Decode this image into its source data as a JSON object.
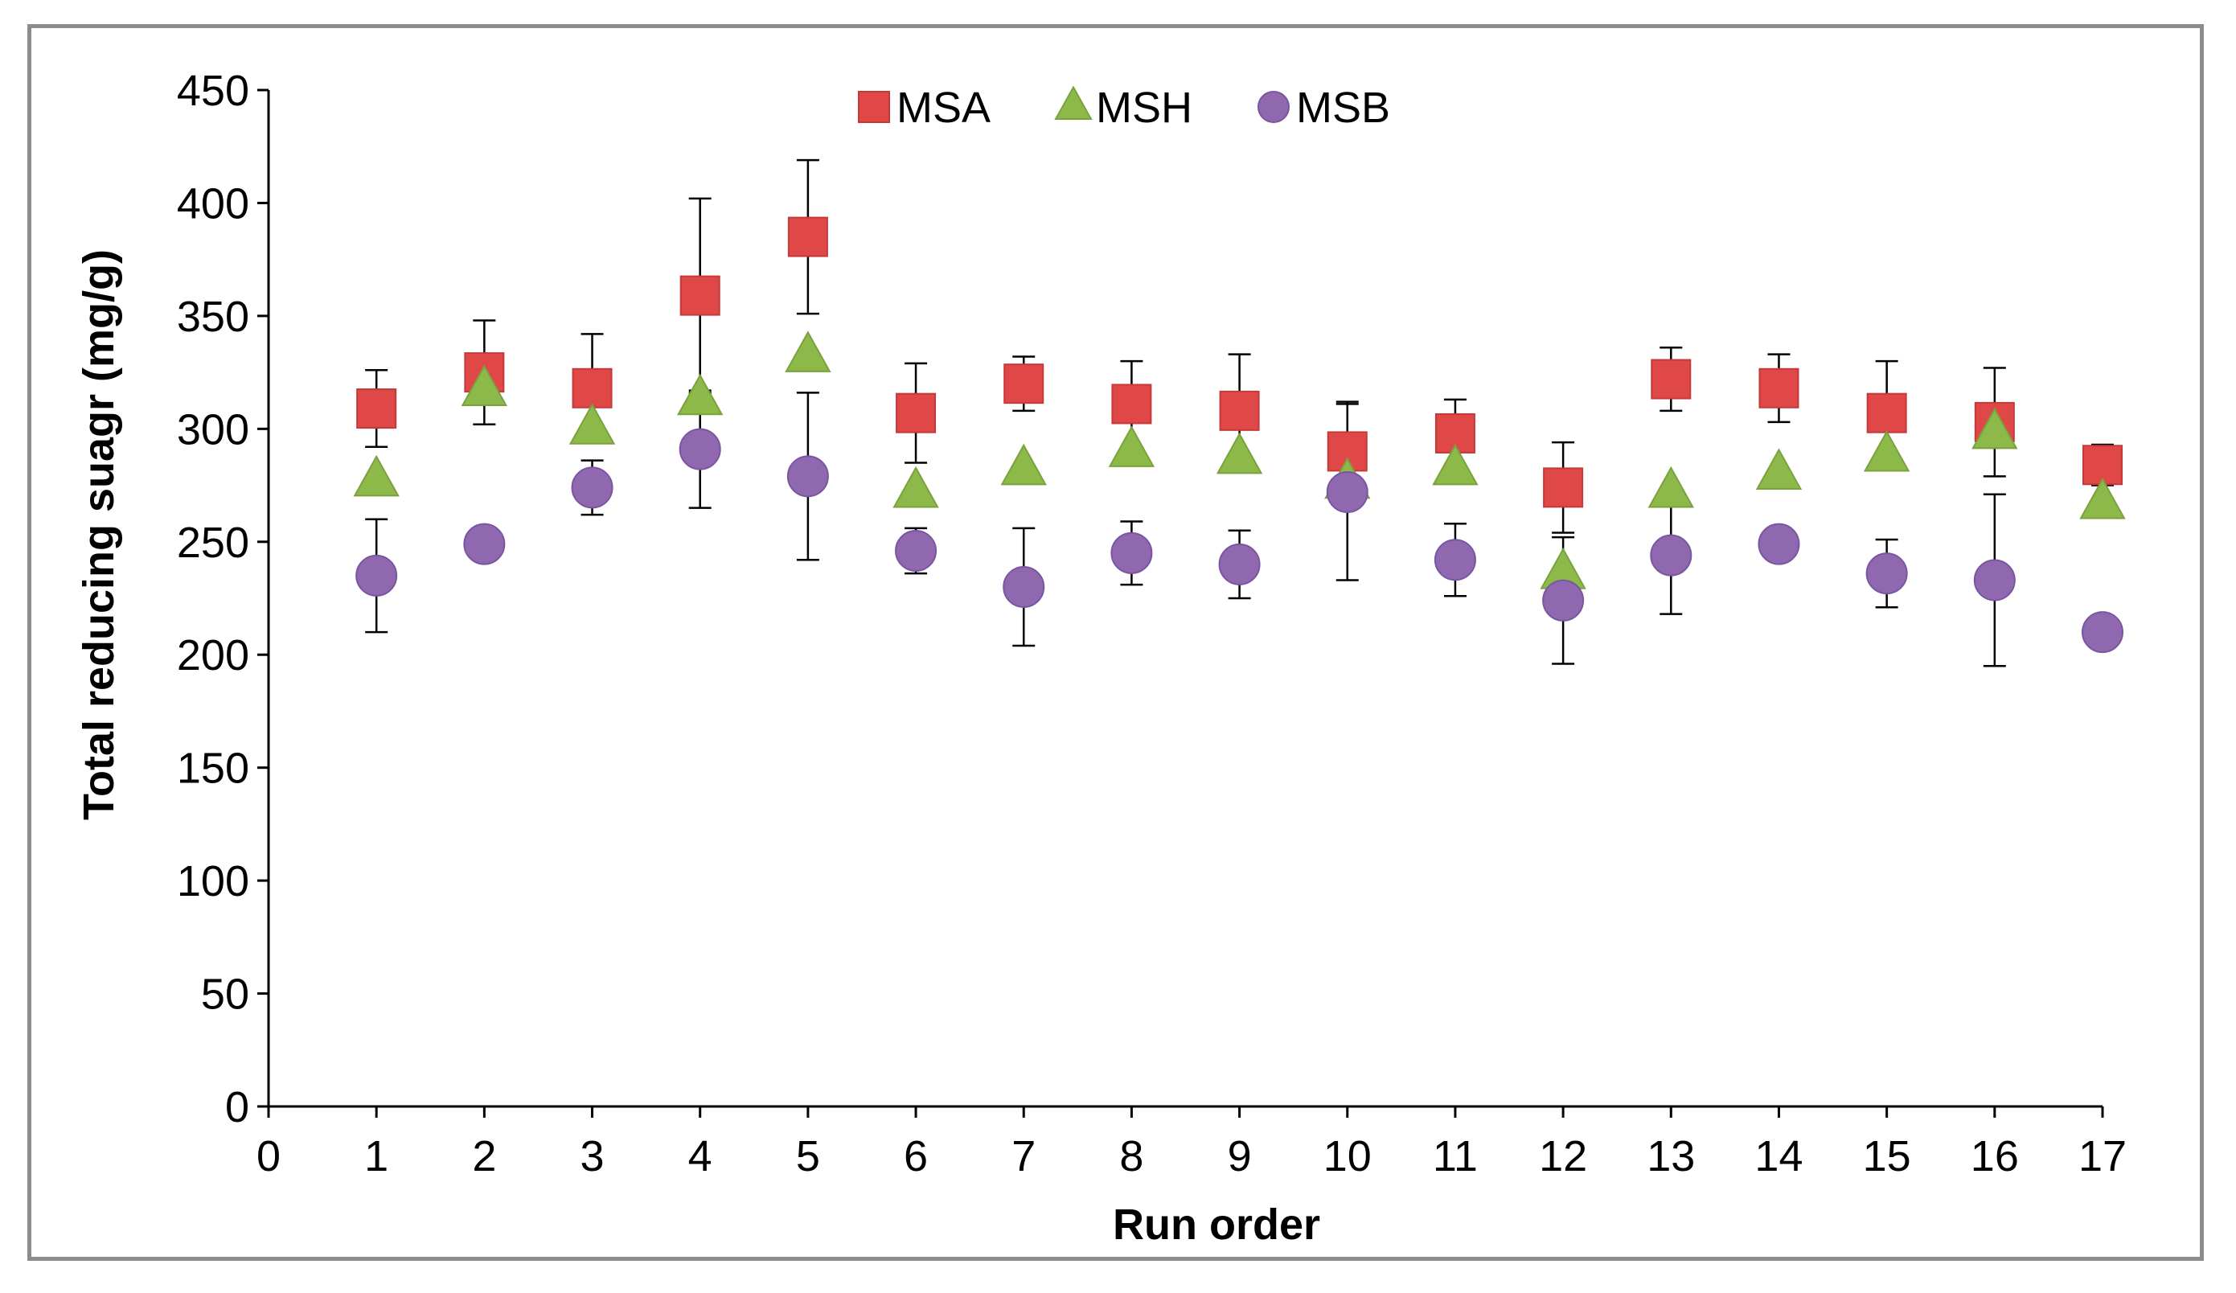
{
  "chart_data": {
    "type": "scatter",
    "title": "",
    "xlabel": "Run order",
    "ylabel": "Total reducing suagr (mg/g)",
    "xlim": [
      0,
      17
    ],
    "ylim": [
      0,
      450
    ],
    "xticks": [
      0,
      1,
      2,
      3,
      4,
      5,
      6,
      7,
      8,
      9,
      10,
      11,
      12,
      13,
      14,
      15,
      16,
      17
    ],
    "yticks": [
      0,
      50,
      100,
      150,
      200,
      250,
      300,
      350,
      400,
      450
    ],
    "grid": false,
    "legend_position": "top-center",
    "x": [
      1,
      2,
      3,
      4,
      5,
      6,
      7,
      8,
      9,
      10,
      11,
      12,
      13,
      14,
      15,
      16,
      17
    ],
    "series": [
      {
        "name": "MSA",
        "marker": "square",
        "color": "#e04848",
        "values": [
          309,
          325,
          318,
          359,
          385,
          307,
          320,
          311,
          308,
          290,
          298,
          274,
          322,
          318,
          307,
          303,
          284
        ],
        "errors": [
          17,
          23,
          24,
          43,
          34,
          22,
          12,
          19,
          25,
          22,
          15,
          20,
          14,
          15,
          23,
          24,
          9
        ]
      },
      {
        "name": "MSH",
        "marker": "triangle",
        "color": "#8db84a",
        "values": [
          277,
          317,
          300,
          313,
          332,
          272,
          282,
          290,
          287,
          276,
          282,
          236,
          272,
          280,
          288,
          298,
          267
        ]
      },
      {
        "name": "MSB",
        "marker": "circle",
        "color": "#9068b0",
        "values": [
          235,
          249,
          274,
          291,
          279,
          246,
          230,
          245,
          240,
          272,
          242,
          224,
          244,
          249,
          236,
          233,
          210
        ],
        "errors": [
          25,
          0,
          12,
          26,
          37,
          10,
          26,
          14,
          15,
          39,
          16,
          28,
          26,
          0,
          15,
          38,
          7
        ]
      }
    ]
  }
}
